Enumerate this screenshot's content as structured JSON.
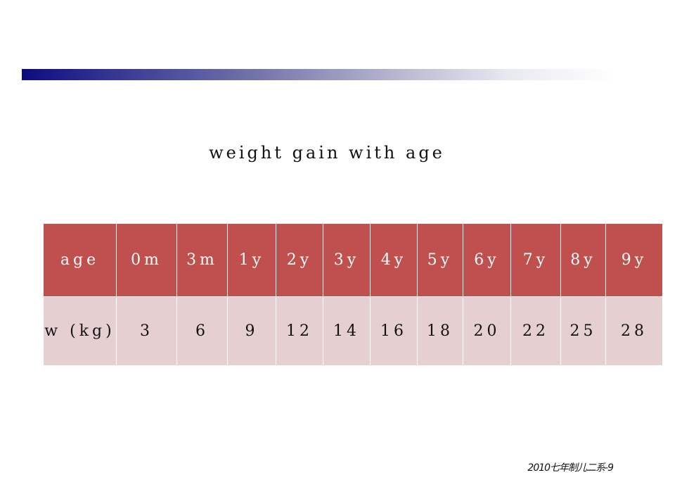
{
  "slide": {
    "title": "weight gain with age",
    "footer": "2010七年制儿二系-9"
  },
  "table": {
    "header": [
      "age",
      "0m",
      "3m",
      "1y",
      "2y",
      "3y",
      "4y",
      "5y",
      "6y",
      "7y",
      "8y",
      "9y"
    ],
    "row": [
      "w (kg)",
      "3",
      "6",
      "9",
      "12",
      "14",
      "16",
      "18",
      "20",
      "22",
      "25",
      "28"
    ]
  },
  "colors": {
    "header_bg": "#c0504d",
    "row_bg": "#e6cfd0",
    "bar_start": "#0c0c80"
  }
}
